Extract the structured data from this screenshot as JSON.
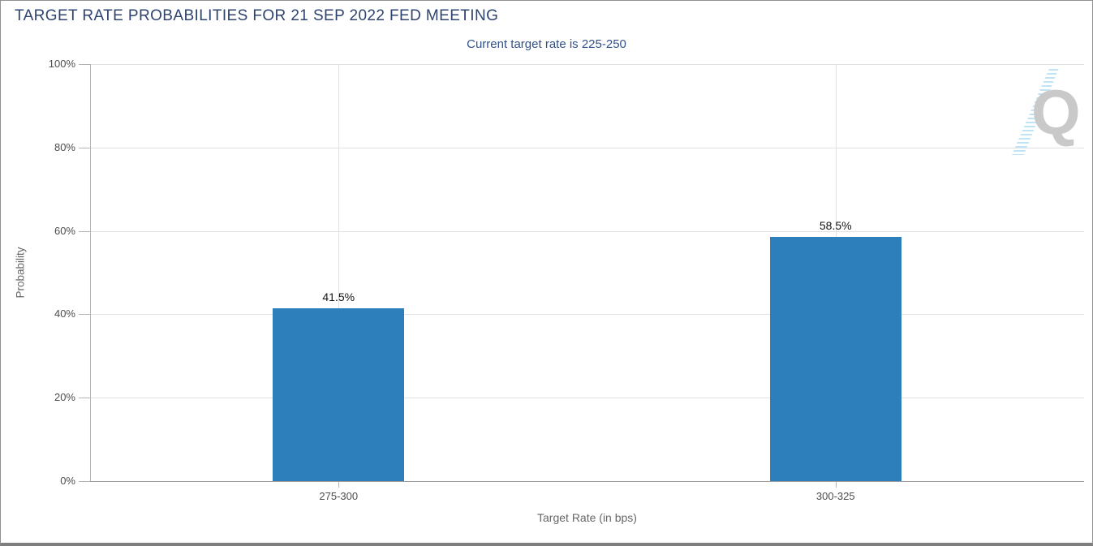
{
  "header": {
    "title": "TARGET RATE PROBABILITIES FOR 21 SEP 2022 FED MEETING",
    "subtitle": "Current target rate is 225-250"
  },
  "watermark": {
    "letter": "Q"
  },
  "colors": {
    "title": "#2e4370",
    "subtitle": "#31518a",
    "bar": "#2c7fba",
    "grid": "#e2e2e2",
    "axis": "#b3b3b3",
    "axis_bottom": "#9e9e9e",
    "tick_label": "#4d4d4d",
    "value_label": "#141414",
    "watermark_gray": "#c9c9c9",
    "watermark_blue": "#bfe4f6"
  },
  "chart_data": {
    "type": "bar",
    "title": "TARGET RATE PROBABILITIES FOR 21 SEP 2022 FED MEETING",
    "subtitle": "Current target rate is 225-250",
    "categories": [
      "275-300",
      "300-325"
    ],
    "values": [
      41.5,
      58.5
    ],
    "value_labels": [
      "41.5%",
      "58.5%"
    ],
    "xlabel": "Target Rate (in bps)",
    "ylabel": "Probability",
    "ylim": [
      0,
      100
    ],
    "yticks": [
      0,
      20,
      40,
      60,
      80,
      100
    ],
    "ytick_labels": [
      "0%",
      "20%",
      "40%",
      "60%",
      "80%",
      "100%"
    ],
    "grid": true,
    "legend": false
  }
}
